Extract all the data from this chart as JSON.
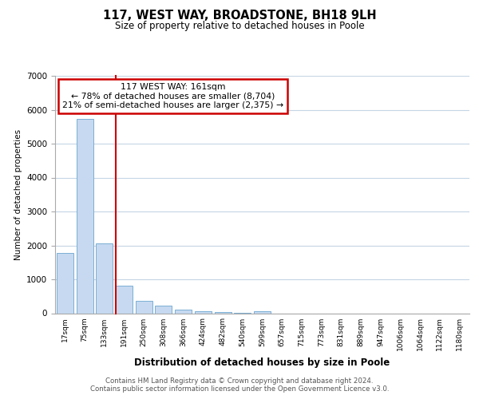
{
  "title": "117, WEST WAY, BROADSTONE, BH18 9LH",
  "subtitle": "Size of property relative to detached houses in Poole",
  "xlabel": "Distribution of detached houses by size in Poole",
  "ylabel": "Number of detached properties",
  "bar_labels": [
    "17sqm",
    "75sqm",
    "133sqm",
    "191sqm",
    "250sqm",
    "308sqm",
    "366sqm",
    "424sqm",
    "482sqm",
    "540sqm",
    "599sqm",
    "657sqm",
    "715sqm",
    "773sqm",
    "831sqm",
    "889sqm",
    "947sqm",
    "1006sqm",
    "1064sqm",
    "1122sqm",
    "1180sqm"
  ],
  "bar_values": [
    1780,
    5740,
    2060,
    820,
    370,
    235,
    110,
    55,
    25,
    15,
    50,
    0,
    0,
    0,
    0,
    0,
    0,
    0,
    0,
    0,
    0
  ],
  "bar_color": "#c6d9f0",
  "bar_edge_color": "#7bafd4",
  "vline_color": "#cc0000",
  "annotation_line1": "117 WEST WAY: 161sqm",
  "annotation_line2": "← 78% of detached houses are smaller (8,704)",
  "annotation_line3": "21% of semi-detached houses are larger (2,375) →",
  "annotation_box_color": "#ffffff",
  "annotation_box_edge": "#cc0000",
  "ylim": [
    0,
    7000
  ],
  "yticks": [
    0,
    1000,
    2000,
    3000,
    4000,
    5000,
    6000,
    7000
  ],
  "footer_text": "Contains HM Land Registry data © Crown copyright and database right 2024.\nContains public sector information licensed under the Open Government Licence v3.0.",
  "background_color": "#ffffff",
  "grid_color": "#c5d5e5"
}
